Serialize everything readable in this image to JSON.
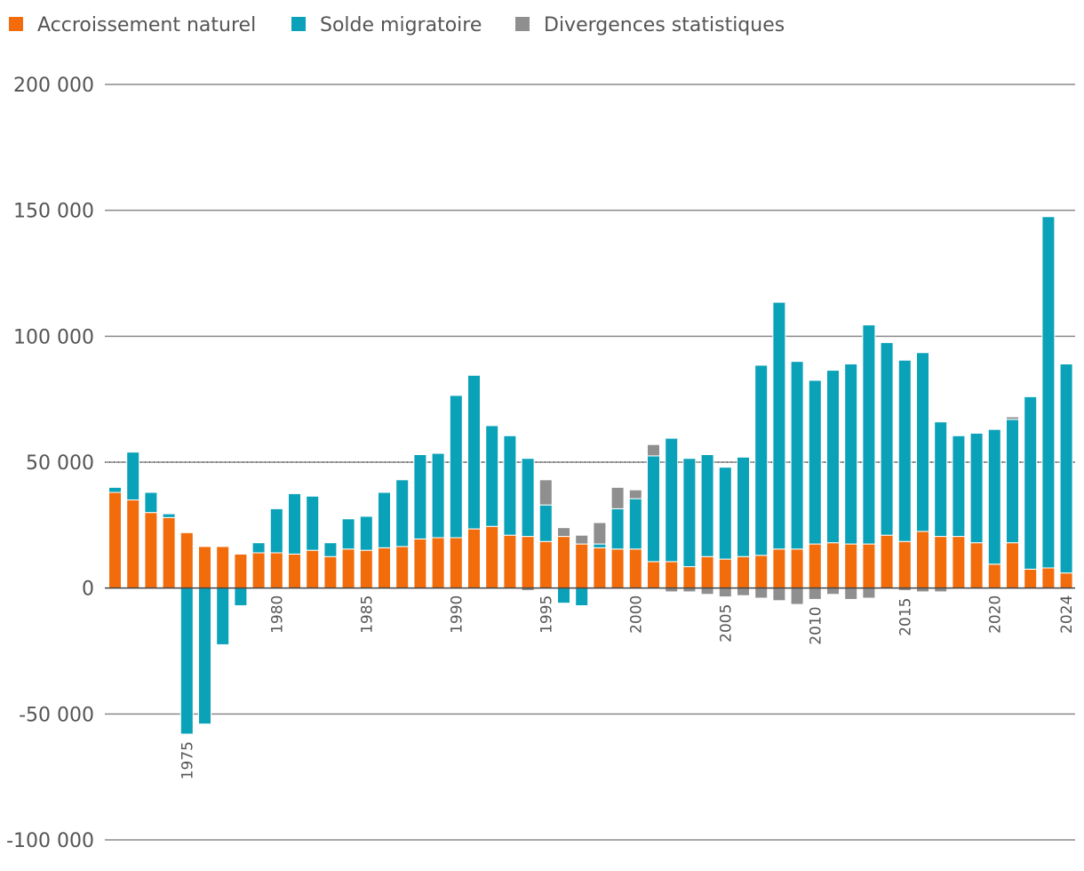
{
  "chart_data": {
    "type": "bar",
    "stacked": true,
    "title": "",
    "xlabel": "",
    "ylabel": "",
    "ylim": [
      -100000,
      200000
    ],
    "yticks": [
      200000,
      150000,
      100000,
      50000,
      0,
      -50000,
      -100000
    ],
    "ytick_labels": [
      "200 000",
      "150 000",
      "100 000",
      "50 000",
      "0",
      "-50 000",
      "-100 000"
    ],
    "xtick_labels": [
      "1975",
      "1980",
      "1985",
      "1990",
      "1995",
      "2000",
      "2005",
      "2010",
      "2015",
      "2020",
      "2024"
    ],
    "colors": {
      "natural": "#f26c0c",
      "migration": "#0aa2b8",
      "divergence": "#8f8f8f",
      "grid": "#8a8a8a",
      "zero_line": "#444444"
    },
    "legend_position": "top-left",
    "years": [
      1971,
      1972,
      1973,
      1974,
      1975,
      1976,
      1977,
      1978,
      1979,
      1980,
      1981,
      1982,
      1983,
      1984,
      1985,
      1986,
      1987,
      1988,
      1989,
      1990,
      1991,
      1992,
      1993,
      1994,
      1995,
      1996,
      1997,
      1998,
      1999,
      2000,
      2001,
      2002,
      2003,
      2004,
      2005,
      2006,
      2007,
      2008,
      2009,
      2010,
      2011,
      2012,
      2013,
      2014,
      2015,
      2016,
      2017,
      2018,
      2019,
      2020,
      2021,
      2022,
      2023,
      2024
    ],
    "series": [
      {
        "key": "natural",
        "name": "Accroissement naturel",
        "values": [
          38000,
          35000,
          30000,
          28000,
          22000,
          16500,
          16500,
          13500,
          14000,
          14000,
          13500,
          15000,
          12500,
          15500,
          15000,
          16000,
          16500,
          19500,
          20000,
          20000,
          23500,
          24500,
          21000,
          20500,
          18500,
          20500,
          17500,
          16000,
          15500,
          15500,
          10500,
          10500,
          8500,
          12500,
          11500,
          12500,
          13000,
          15500,
          15500,
          17500,
          18000,
          17500,
          17500,
          21000,
          18500,
          22500,
          20500,
          20500,
          18000,
          9500,
          18000,
          7500,
          8000,
          6000
        ]
      },
      {
        "key": "migration",
        "name": "Solde migratoire",
        "values": [
          2000,
          19000,
          8000,
          1500,
          -58000,
          -54000,
          -22500,
          -7000,
          4000,
          17500,
          24000,
          21500,
          5500,
          12000,
          13500,
          22000,
          26500,
          33500,
          33500,
          56500,
          61000,
          40000,
          39500,
          31000,
          14500,
          -6000,
          -7000,
          1500,
          16000,
          20000,
          42000,
          49000,
          43000,
          40500,
          36500,
          39500,
          75500,
          98000,
          74500,
          65000,
          68500,
          71500,
          87000,
          76500,
          72000,
          71000,
          45500,
          40000,
          43500,
          53500,
          49000,
          68500,
          139500,
          83000
        ]
      },
      {
        "key": "divergence",
        "name": "Divergences statistiques",
        "values": [
          0,
          0,
          0,
          0,
          0,
          0,
          0,
          0,
          0,
          0,
          0,
          0,
          0,
          0,
          0,
          0,
          0,
          0,
          0,
          0,
          0,
          0,
          0,
          -1000,
          10000,
          3500,
          3500,
          8500,
          8500,
          3500,
          4500,
          -1500,
          -1500,
          -2500,
          -3500,
          -3000,
          -4000,
          -5000,
          -6500,
          -4500,
          -2500,
          -4500,
          -4000,
          0,
          -1000,
          -1500,
          -1500,
          0,
          0,
          0,
          1000,
          0,
          0,
          0
        ]
      }
    ]
  }
}
